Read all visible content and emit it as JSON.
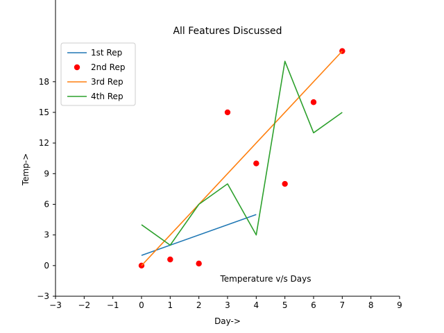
{
  "chart_data": {
    "type": "line",
    "title": "All Features Discussed",
    "xlabel": "Day->",
    "ylabel": "Temp->",
    "xlim": [
      -3,
      9
    ],
    "ylim": [
      -3,
      26
    ],
    "xticks": [
      "−3",
      "−2",
      "−1",
      "0",
      "1",
      "2",
      "3",
      "4",
      "5",
      "6",
      "7",
      "8",
      "9"
    ],
    "yticks": [
      "−3",
      "0",
      "3",
      "6",
      "9",
      "12",
      "15",
      "18"
    ],
    "grid": false,
    "legend_position": "upper-left",
    "annotation": {
      "text": "Temperature v/s Days",
      "x": 2.5,
      "y": -1.5
    },
    "series": [
      {
        "name": "1st Rep",
        "kind": "line",
        "color": "#1f77b4",
        "x": [
          0,
          4
        ],
        "y": [
          1,
          5
        ]
      },
      {
        "name": "2nd Rep",
        "kind": "scatter",
        "color": "#ff0000",
        "x": [
          0,
          1,
          2,
          3,
          4,
          5,
          6,
          7
        ],
        "y": [
          0,
          0.6,
          0.2,
          15,
          10,
          8,
          16,
          21
        ]
      },
      {
        "name": "3rd Rep",
        "kind": "line",
        "color": "#ff7f0e",
        "x": [
          0,
          7
        ],
        "y": [
          0,
          21
        ]
      },
      {
        "name": "4th Rep",
        "kind": "line",
        "color": "#2ca02c",
        "x": [
          0,
          1,
          2,
          3,
          4,
          5,
          6,
          7
        ],
        "y": [
          4,
          2,
          6,
          8,
          3,
          20,
          13,
          15
        ]
      }
    ]
  }
}
